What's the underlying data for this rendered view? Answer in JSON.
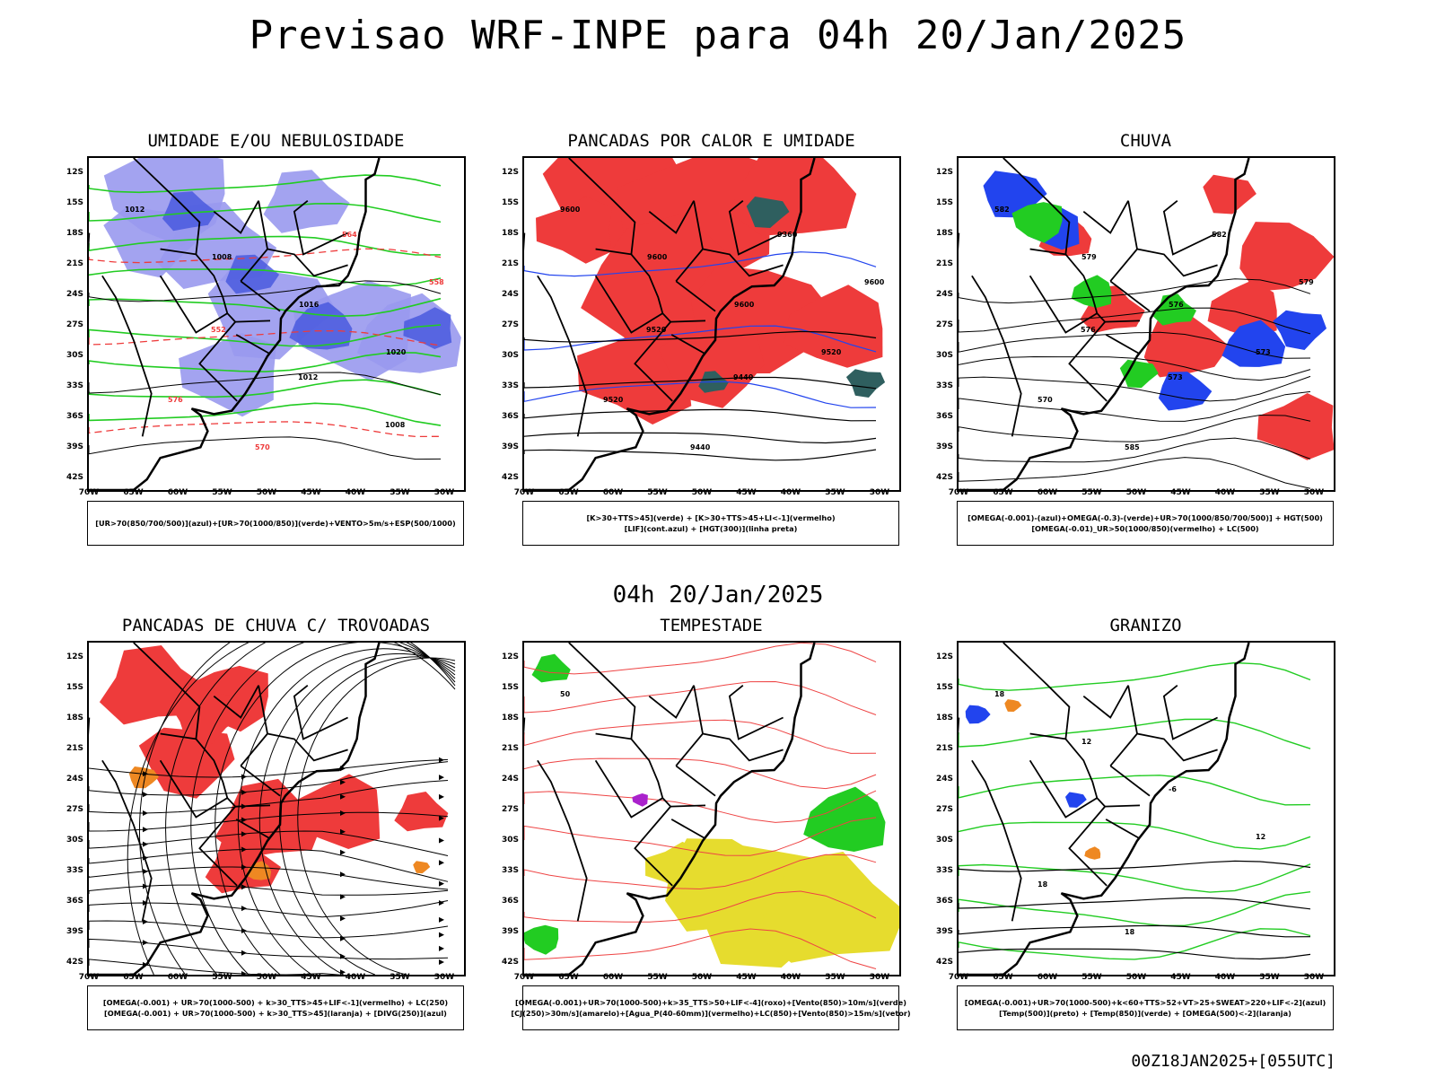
{
  "header": {
    "title": "Previsao WRF-INPE  para 04h 20/Jan/2025",
    "subtitle": "04h 20/Jan/2025",
    "footer": "00Z18JAN2025+[055UTC]"
  },
  "axes": {
    "lat_labels": [
      "12S",
      "15S",
      "18S",
      "21S",
      "24S",
      "27S",
      "30S",
      "33S",
      "36S",
      "39S",
      "42S"
    ],
    "lon_labels": [
      "70W",
      "65W",
      "60W",
      "55W",
      "50W",
      "45W",
      "40W",
      "35W",
      "30W"
    ]
  },
  "colors": {
    "red": "#ee3b3b",
    "green": "#22cc22",
    "blue": "#2244ee",
    "lightblue": "#9999ee",
    "darkteal": "#2f5f5f",
    "yellow": "#e6dc2e",
    "orange": "#ee8822",
    "purple": "#aa22cc"
  },
  "panels": [
    {
      "title": "UMIDADE E/OU NEBULOSIDADE",
      "legend": [
        "[UR>70(850/700/500)](azul)+[UR>70(1000/850)](verde)+VENTO>5m/s+ESP(500/1000)"
      ],
      "contour_labels": [
        "1012",
        "1008",
        "1016",
        "1020",
        "576",
        "570",
        "564",
        "558",
        "552",
        "1012",
        "1008"
      ]
    },
    {
      "title": "PANCADAS POR CALOR E UMIDADE",
      "legend": [
        "[K>30+TTS>45](verde) + [K>30+TTS>45+LI<-1](vermelho)",
        "[LIF](cont.azul) + [HGT(300)](linha preta)"
      ],
      "contour_labels": [
        "9600",
        "9600",
        "9600",
        "9520",
        "9520",
        "9440",
        "9360",
        "9600",
        "9520",
        "9440"
      ]
    },
    {
      "title": "CHUVA",
      "legend": [
        "[OMEGA(-0.001)-(azul)+OMEGA(-0.3)-(verde)+UR>70(1000/850/700/500)] + HGT(500)",
        "[OMEGA(-0.01)_UR>50(1000/850)(vermelho) + LC(500)"
      ],
      "contour_labels": [
        "582",
        "579",
        "576",
        "573",
        "570",
        "585",
        "582",
        "579",
        "576",
        "573"
      ]
    },
    {
      "title": "PANCADAS DE CHUVA C/ TROVOADAS",
      "legend": [
        "[OMEGA(-0.001) + UR>70(1000-500) + k>30_TTS>45+LIF<-1](vermelho) + LC(250)",
        "[OMEGA(-0.001) + UR>70(1000-500) + k>30_TTS>45](laranja) + [DIVG(250)](azul)"
      ],
      "contour_labels": []
    },
    {
      "title": "TEMPESTADE",
      "legend": [
        "[OMEGA(-0.001)+UR>70(1000-500)+k>35_TTS>50+LIF<-4](roxo)+[Vento(850)>10m/s](verde)",
        "[CJ(250)>30m/s](amarelo)+[Agua_P(40-60mm)](vermelho)+LC(850)+[Vento(850)>15m/s](vetor)"
      ],
      "contour_labels": [
        "50"
      ]
    },
    {
      "title": "GRANIZO",
      "legend": [
        "[OMEGA(-0.001)+UR>70(1000-500)+k<60+TTS>52+VT>25+SWEAT>220+LIF<-2](azul)",
        "[Temp(500)](preto) + [Temp(850)](verde) + [OMEGA(500)<-2](laranja)"
      ],
      "contour_labels": [
        "18",
        "12",
        "-6",
        "12",
        "18",
        "18"
      ]
    }
  ]
}
